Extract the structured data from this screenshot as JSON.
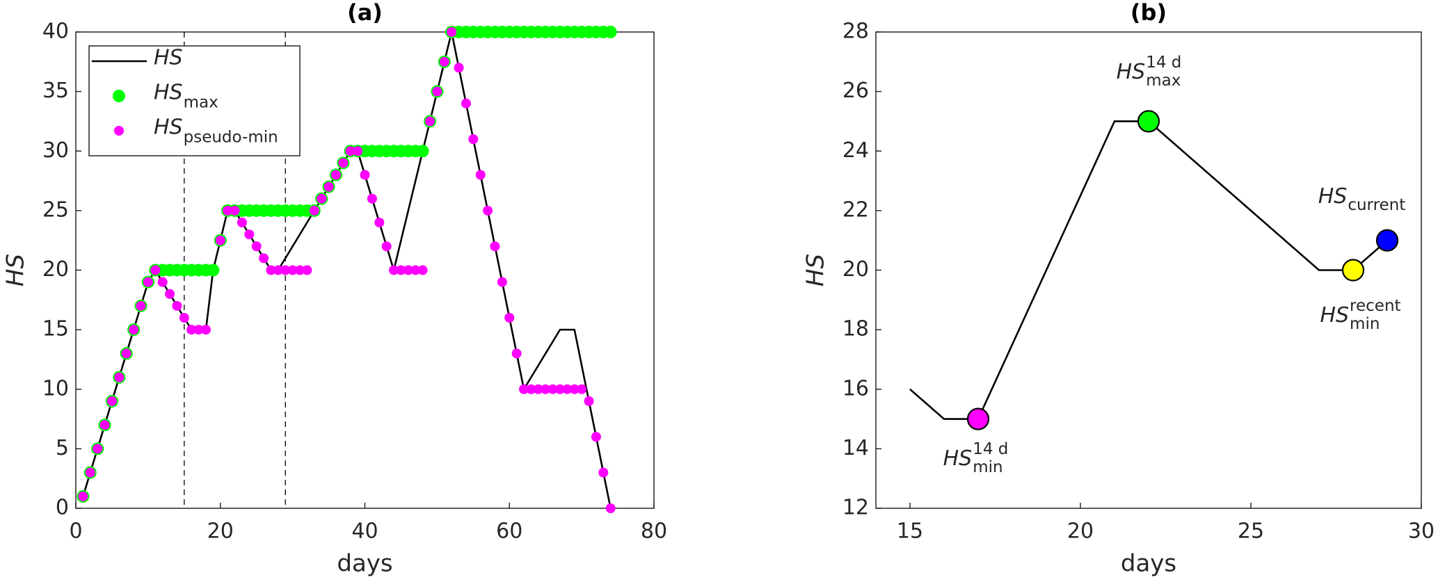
{
  "chart_data": [
    {
      "type": "line",
      "title": "(a)",
      "xlabel": "days",
      "ylabel": "HS",
      "xlim": [
        0,
        80
      ],
      "ylim": [
        0,
        40
      ],
      "xticks": [
        0,
        20,
        40,
        60,
        80
      ],
      "yticks": [
        0,
        5,
        10,
        15,
        20,
        25,
        30,
        35,
        40
      ],
      "legend": "upper left",
      "vlines": [
        15,
        29
      ],
      "x": [
        1,
        2,
        3,
        4,
        5,
        6,
        7,
        8,
        9,
        10,
        11,
        12,
        13,
        14,
        15,
        16,
        17,
        18,
        19,
        20,
        21,
        22,
        23,
        24,
        25,
        26,
        27,
        28,
        29,
        30,
        31,
        32,
        33,
        34,
        35,
        36,
        37,
        38,
        39,
        40,
        41,
        42,
        43,
        44,
        45,
        46,
        47,
        48,
        49,
        50,
        51,
        52,
        53,
        54,
        55,
        56,
        57,
        58,
        59,
        60,
        61,
        62,
        63,
        64,
        65,
        66,
        67,
        68,
        69,
        70,
        71,
        72,
        73,
        74
      ],
      "series": [
        {
          "name": "HS",
          "style": "line",
          "color": "#000000",
          "values": [
            1,
            3,
            5,
            7,
            9,
            11,
            13,
            15,
            17,
            19,
            20,
            19,
            18,
            17,
            16,
            15,
            15,
            15,
            20,
            22.5,
            25,
            25,
            24,
            23,
            22,
            21,
            20,
            20,
            21,
            22,
            23,
            24,
            25,
            26,
            27,
            28,
            29,
            30,
            30,
            28,
            26,
            24,
            22,
            20,
            22.5,
            25,
            27.5,
            30,
            32.5,
            35,
            37.5,
            40,
            37,
            34,
            31,
            28,
            25,
            22,
            19,
            16,
            13,
            10,
            11,
            12,
            13,
            14,
            15,
            15,
            15,
            12,
            9,
            6,
            3,
            0
          ]
        },
        {
          "name": "HS",
          "subscript": "max",
          "style": "marker",
          "color": "#00ff00",
          "values": [
            1,
            3,
            5,
            7,
            9,
            11,
            13,
            15,
            17,
            19,
            20,
            20,
            20,
            20,
            20,
            20,
            20,
            20,
            20,
            22.5,
            25,
            25,
            25,
            25,
            25,
            25,
            25,
            25,
            25,
            25,
            25,
            25,
            25,
            26,
            27,
            28,
            29,
            30,
            30,
            30,
            30,
            30,
            30,
            30,
            30,
            30,
            30,
            30,
            32.5,
            35,
            37.5,
            40,
            40,
            40,
            40,
            40,
            40,
            40,
            40,
            40,
            40,
            40,
            40,
            40,
            40,
            40,
            40,
            40,
            40,
            40,
            40,
            40,
            40,
            40
          ]
        },
        {
          "name": "HS",
          "subscript": "pseudo-min",
          "style": "marker",
          "color": "#ff00ff",
          "values": [
            1,
            3,
            5,
            7,
            9,
            11,
            13,
            15,
            17,
            19,
            20,
            19,
            18,
            17,
            16,
            15,
            15,
            15,
            null,
            22.5,
            25,
            25,
            24,
            23,
            22,
            21,
            20,
            20,
            20,
            20,
            20,
            20,
            25,
            26,
            27,
            28,
            29,
            30,
            30,
            28,
            26,
            24,
            22,
            20,
            20,
            20,
            20,
            20,
            32.5,
            35,
            37.5,
            40,
            37,
            34,
            31,
            28,
            25,
            22,
            19,
            16,
            13,
            10,
            10,
            10,
            10,
            10,
            10,
            10,
            10,
            10,
            9,
            6,
            3,
            0
          ]
        }
      ]
    },
    {
      "type": "line",
      "title": "(b)",
      "xlabel": "days",
      "ylabel": "HS",
      "xlim": [
        14,
        30
      ],
      "ylim": [
        12,
        28
      ],
      "xticks": [
        15,
        20,
        25,
        30
      ],
      "yticks": [
        12,
        14,
        16,
        18,
        20,
        22,
        24,
        26,
        28
      ],
      "x": [
        15,
        16,
        17,
        21,
        22,
        27,
        28,
        29
      ],
      "series": [
        {
          "name": "HS",
          "style": "line",
          "color": "#000000",
          "values": [
            16,
            15,
            15,
            25,
            25,
            20,
            20,
            21
          ]
        }
      ],
      "points": [
        {
          "x": 17,
          "y": 15,
          "color": "#ff00ff",
          "label": "HS",
          "sup": "14 d",
          "sub": "min"
        },
        {
          "x": 22,
          "y": 25,
          "color": "#00ff00",
          "label": "HS",
          "sup": "14 d",
          "sub": "max"
        },
        {
          "x": 28,
          "y": 20,
          "color": "#ffff00",
          "label": "HS",
          "sup": "recent",
          "sub": "min"
        },
        {
          "x": 29,
          "y": 21,
          "color": "#0000ff",
          "label": "HS",
          "sub": "current"
        }
      ]
    }
  ]
}
